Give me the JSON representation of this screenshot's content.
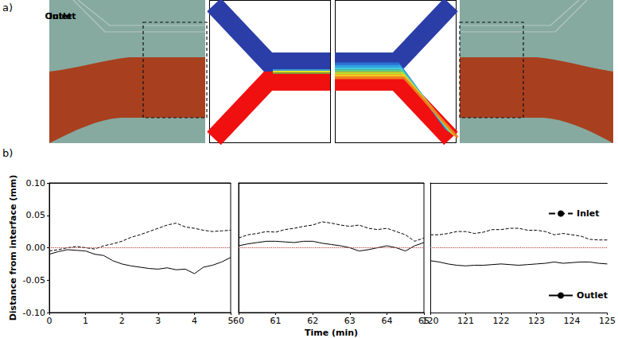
{
  "panel_a": {
    "label": "a)",
    "diagrams": [
      {
        "title": "Inlet"
      },
      {
        "title": "Outlet"
      }
    ]
  },
  "chart_data": {
    "type": "line",
    "label": "b)",
    "xlabel": "Time (min)",
    "ylabel": "Distance from interface (mm)",
    "ylim": [
      -0.1,
      0.1
    ],
    "yticks": [
      {
        "value": 0.1,
        "label": "0.10"
      },
      {
        "value": 0.05,
        "label": "0.05"
      },
      {
        "value": 0,
        "label": "0.00"
      },
      {
        "value": -0.05,
        "label": "-0.05"
      },
      {
        "value": -0.1,
        "label": "-0.10"
      }
    ],
    "grid": false,
    "legend": "right",
    "zero_line": {
      "y": 0,
      "color": "#b03a2e",
      "line_style": "dotted"
    },
    "segments": [
      {
        "xlim": [
          0,
          5
        ],
        "xticks": [
          0,
          1,
          2,
          3,
          4,
          5
        ],
        "x": [
          0,
          0.25,
          0.5,
          0.75,
          1,
          1.25,
          1.5,
          1.75,
          2,
          2.25,
          2.5,
          2.75,
          3,
          3.25,
          3.5,
          3.75,
          4,
          4.25,
          4.5,
          4.75,
          5
        ],
        "series": [
          {
            "name": "Inlet",
            "color": "#000000",
            "line_style": "dashed",
            "values": [
              -0.005,
              -0.003,
              0,
              0.002,
              0,
              -0.002,
              0.003,
              0.006,
              0.01,
              0.016,
              0.02,
              0.025,
              0.03,
              0.035,
              0.038,
              0.032,
              0.03,
              0.027,
              0.025,
              0.026,
              0.027
            ]
          },
          {
            "name": "Outlet",
            "color": "#000000",
            "line_style": "solid",
            "values": [
              -0.01,
              -0.006,
              -0.003,
              -0.004,
              -0.005,
              -0.01,
              -0.012,
              -0.02,
              -0.025,
              -0.028,
              -0.03,
              -0.032,
              -0.033,
              -0.031,
              -0.034,
              -0.033,
              -0.04,
              -0.03,
              -0.027,
              -0.022,
              -0.015
            ]
          }
        ]
      },
      {
        "xlim": [
          60,
          65
        ],
        "xticks": [
          60,
          61,
          62,
          63,
          64,
          65
        ],
        "tick_labels": "x",
        "x": [
          60,
          60.25,
          60.5,
          60.75,
          61,
          61.25,
          61.5,
          61.75,
          62,
          62.25,
          62.5,
          62.75,
          63,
          63.25,
          63.5,
          63.75,
          64,
          64.25,
          64.5,
          64.75,
          65
        ],
        "series": [
          {
            "name": "Inlet",
            "color": "#000000",
            "line_style": "dashed",
            "values": [
              0.015,
              0.02,
              0.022,
              0.025,
              0.024,
              0.028,
              0.03,
              0.033,
              0.035,
              0.04,
              0.038,
              0.035,
              0.033,
              0.035,
              0.03,
              0.028,
              0.03,
              0.025,
              0.02,
              0.01,
              0.015
            ]
          },
          {
            "name": "Outlet",
            "color": "#000000",
            "line_style": "solid",
            "values": [
              0.003,
              0.006,
              0.008,
              0.01,
              0.01,
              0.009,
              0.008,
              0.01,
              0.01,
              0.007,
              0.005,
              0.003,
              0,
              -0.005,
              -0.003,
              0,
              0.003,
              0,
              -0.005,
              0.003,
              0.008
            ]
          }
        ]
      },
      {
        "xlim": [
          120,
          125
        ],
        "xticks": [
          120,
          121,
          122,
          123,
          124,
          125
        ],
        "tick_labels": "x",
        "x": [
          120,
          120.25,
          120.5,
          120.75,
          121,
          121.25,
          121.5,
          121.75,
          122,
          122.25,
          122.5,
          122.75,
          123,
          123.25,
          123.5,
          123.75,
          124,
          124.25,
          124.5,
          124.75,
          125
        ],
        "series": [
          {
            "name": "Inlet",
            "color": "#000000",
            "line_style": "dashed",
            "values": [
              0.02,
              0.02,
              0.022,
              0.025,
              0.025,
              0.022,
              0.024,
              0.028,
              0.028,
              0.03,
              0.03,
              0.027,
              0.027,
              0.025,
              0.02,
              0.022,
              0.02,
              0.018,
              0.013,
              0.012,
              0.012
            ]
          },
          {
            "name": "Outlet",
            "color": "#000000",
            "line_style": "solid",
            "values": [
              -0.02,
              -0.022,
              -0.025,
              -0.027,
              -0.028,
              -0.027,
              -0.027,
              -0.026,
              -0.025,
              -0.026,
              -0.027,
              -0.026,
              -0.025,
              -0.024,
              -0.022,
              -0.024,
              -0.023,
              -0.022,
              -0.022,
              -0.024,
              -0.025
            ]
          }
        ]
      }
    ]
  }
}
